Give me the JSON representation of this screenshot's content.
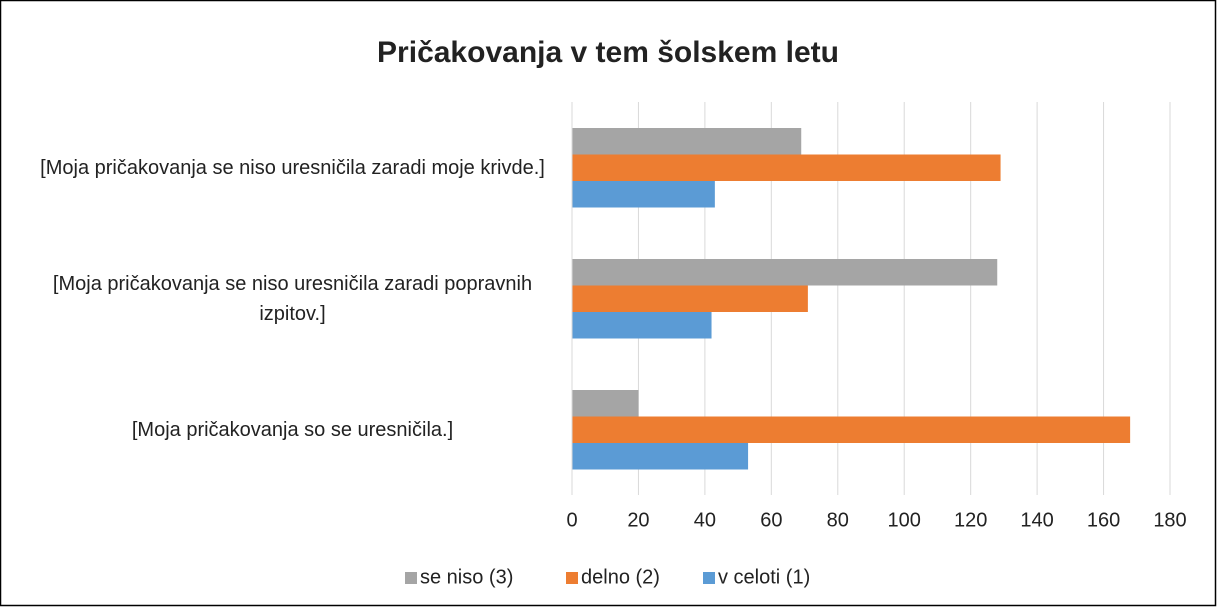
{
  "chart_data": {
    "type": "bar",
    "orientation": "horizontal",
    "title": "Pričakovanja v tem šolskem letu",
    "categories": [
      "[Moja pričakovanja se niso uresničila zaradi moje krivde.]",
      "[Moja pričakovanja se niso uresničila zaradi popravnih izpitov.]",
      "[Moja pričakovanja so se uresničila.]"
    ],
    "series": [
      {
        "name": "se niso (3)",
        "color": "#a5a5a5",
        "values": [
          69,
          128,
          20
        ]
      },
      {
        "name": "delno (2)",
        "color": "#ed7d31",
        "values": [
          129,
          71,
          168
        ]
      },
      {
        "name": "v celoti (1)",
        "color": "#5b9bd5",
        "values": [
          43,
          42,
          53
        ]
      }
    ],
    "xlim": [
      0,
      180
    ],
    "xticks": [
      0,
      20,
      40,
      60,
      80,
      100,
      120,
      140,
      160,
      180
    ],
    "grid": true,
    "legend": "bottom"
  }
}
